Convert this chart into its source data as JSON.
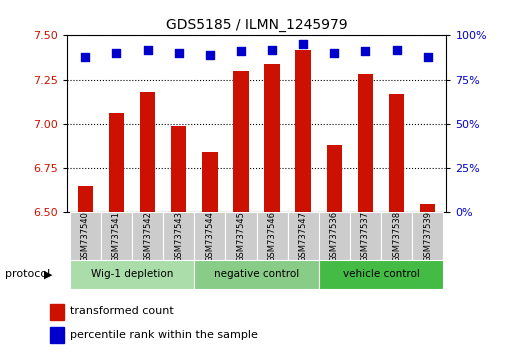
{
  "title": "GDS5185 / ILMN_1245979",
  "samples": [
    "GSM737540",
    "GSM737541",
    "GSM737542",
    "GSM737543",
    "GSM737544",
    "GSM737545",
    "GSM737546",
    "GSM737547",
    "GSM737536",
    "GSM737537",
    "GSM737538",
    "GSM737539"
  ],
  "bar_values": [
    6.65,
    7.06,
    7.18,
    6.99,
    6.84,
    7.3,
    7.34,
    7.42,
    6.88,
    7.28,
    7.17,
    6.55
  ],
  "percentile_values": [
    88,
    90,
    92,
    90,
    89,
    91,
    92,
    95,
    90,
    91,
    92,
    88
  ],
  "bar_color": "#cc1100",
  "dot_color": "#0000cc",
  "ylim_left": [
    6.5,
    7.5
  ],
  "ylim_right": [
    0,
    100
  ],
  "yticks_left": [
    6.5,
    6.75,
    7.0,
    7.25,
    7.5
  ],
  "yticks_right": [
    0,
    25,
    50,
    75,
    100
  ],
  "ylabel_right_labels": [
    "0%",
    "25%",
    "50%",
    "75%",
    "100%"
  ],
  "groups": [
    {
      "label": "Wig-1 depletion",
      "indices": [
        0,
        1,
        2,
        3
      ]
    },
    {
      "label": "negative control",
      "indices": [
        4,
        5,
        6,
        7
      ]
    },
    {
      "label": "vehicle control",
      "indices": [
        8,
        9,
        10,
        11
      ]
    }
  ],
  "group_colors": [
    "#aaddaa",
    "#88cc88",
    "#44bb44"
  ],
  "protocol_label": "protocol",
  "legend_bar_label": "transformed count",
  "legend_dot_label": "percentile rank within the sample",
  "tick_label_color_left": "#cc1100",
  "tick_label_color_right": "#0000cc",
  "title_color": "#000000",
  "bar_width": 0.5,
  "dot_size": 35,
  "sample_box_color": "#cccccc"
}
